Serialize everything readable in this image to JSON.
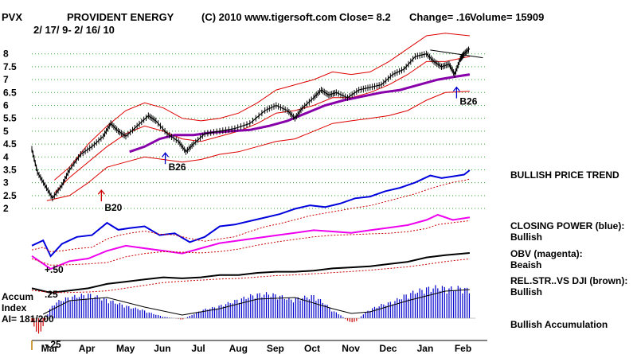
{
  "chart_data": {
    "type": "candlestick",
    "ticker": "PVX",
    "title": "PROVIDENT ENERGY",
    "date_range": "2/ 17/ 9- 2/ 16/ 10",
    "copyright": "(C) 2010 www.tigersoft.com",
    "close_label": "Close=  8.2",
    "change_label": "Change= .16",
    "volume_label": "Volume= 15909",
    "ylim": [
      1.6,
      8.3
    ],
    "y_ticks": [
      {
        "value": 8,
        "label": "8"
      },
      {
        "value": 7.5,
        "label": "7.5"
      },
      {
        "value": 7,
        "label": "7"
      },
      {
        "value": 6.5,
        "label": "6.5"
      },
      {
        "value": 6,
        "label": "6"
      },
      {
        "value": 5.5,
        "label": "5.5"
      },
      {
        "value": 5,
        "label": "5"
      },
      {
        "value": 4.5,
        "label": "4.5"
      },
      {
        "value": 4,
        "label": "4"
      },
      {
        "value": 3.5,
        "label": "3.5"
      },
      {
        "value": 3,
        "label": "3"
      },
      {
        "value": 2.5,
        "label": "2.5"
      },
      {
        "value": 2,
        "label": "2"
      }
    ],
    "x_ticks": [
      {
        "t": 0.5,
        "label": "Mar"
      },
      {
        "t": 1.5,
        "label": "Apr"
      },
      {
        "t": 2.5,
        "label": "May"
      },
      {
        "t": 3.5,
        "label": "Jun"
      },
      {
        "t": 4.5,
        "label": "Jul"
      },
      {
        "t": 5.5,
        "label": "Aug"
      },
      {
        "t": 6.5,
        "label": "Sep"
      },
      {
        "t": 7.5,
        "label": "Oct"
      },
      {
        "t": 8.5,
        "label": "Nov"
      },
      {
        "t": 9.5,
        "label": "Dec"
      },
      {
        "t": 10.5,
        "label": "Jan"
      },
      {
        "t": 11.5,
        "label": "Feb"
      }
    ],
    "price_series": {
      "name": "PVX close",
      "points": [
        [
          0,
          4.3
        ],
        [
          0.15,
          3.4
        ],
        [
          0.35,
          2.9
        ],
        [
          0.55,
          2.4
        ],
        [
          0.8,
          2.9
        ],
        [
          1.0,
          3.5
        ],
        [
          1.3,
          4.1
        ],
        [
          1.6,
          4.4
        ],
        [
          1.9,
          4.8
        ],
        [
          2.1,
          5.3
        ],
        [
          2.3,
          5.0
        ],
        [
          2.5,
          4.8
        ],
        [
          2.8,
          5.2
        ],
        [
          3.1,
          5.6
        ],
        [
          3.3,
          5.4
        ],
        [
          3.6,
          4.9
        ],
        [
          3.9,
          4.6
        ],
        [
          4.1,
          4.2
        ],
        [
          4.3,
          4.5
        ],
        [
          4.6,
          4.9
        ],
        [
          5.0,
          5.0
        ],
        [
          5.4,
          5.1
        ],
        [
          5.8,
          5.3
        ],
        [
          6.2,
          5.8
        ],
        [
          6.5,
          6.0
        ],
        [
          6.8,
          5.8
        ],
        [
          7.0,
          5.5
        ],
        [
          7.2,
          5.9
        ],
        [
          7.5,
          6.3
        ],
        [
          7.7,
          6.6
        ],
        [
          7.9,
          6.4
        ],
        [
          8.1,
          6.5
        ],
        [
          8.4,
          6.3
        ],
        [
          8.7,
          6.6
        ],
        [
          9.0,
          6.7
        ],
        [
          9.3,
          6.8
        ],
        [
          9.6,
          7.2
        ],
        [
          9.9,
          7.4
        ],
        [
          10.2,
          7.9
        ],
        [
          10.5,
          8.0
        ],
        [
          10.7,
          7.7
        ],
        [
          10.9,
          7.5
        ],
        [
          11.1,
          7.6
        ],
        [
          11.25,
          7.2
        ],
        [
          11.4,
          7.8
        ],
        [
          11.5,
          8.0
        ],
        [
          11.65,
          8.2
        ]
      ]
    },
    "moving_average": {
      "name": "65-day MA (purple)",
      "points": [
        [
          2.6,
          4.2
        ],
        [
          3.0,
          4.4
        ],
        [
          3.4,
          4.7
        ],
        [
          3.8,
          4.85
        ],
        [
          4.3,
          4.85
        ],
        [
          4.8,
          4.95
        ],
        [
          5.3,
          5.0
        ],
        [
          5.8,
          5.05
        ],
        [
          6.3,
          5.2
        ],
        [
          6.8,
          5.4
        ],
        [
          7.3,
          5.7
        ],
        [
          7.8,
          6.0
        ],
        [
          8.3,
          6.2
        ],
        [
          8.8,
          6.35
        ],
        [
          9.3,
          6.5
        ],
        [
          9.8,
          6.6
        ],
        [
          10.3,
          6.8
        ],
        [
          10.8,
          7.0
        ],
        [
          11.2,
          7.1
        ],
        [
          11.65,
          7.2
        ]
      ]
    },
    "upper_band": {
      "name": "upper band",
      "points": [
        [
          0.6,
          3.1
        ],
        [
          1.0,
          3.6
        ],
        [
          1.5,
          4.5
        ],
        [
          2.0,
          5.2
        ],
        [
          2.5,
          5.8
        ],
        [
          3.0,
          6.1
        ],
        [
          3.5,
          5.9
        ],
        [
          4.0,
          5.5
        ],
        [
          4.5,
          5.4
        ],
        [
          5.0,
          5.5
        ],
        [
          5.5,
          5.7
        ],
        [
          6.0,
          6.1
        ],
        [
          6.5,
          6.6
        ],
        [
          7.0,
          6.8
        ],
        [
          7.5,
          7.0
        ],
        [
          8.0,
          7.3
        ],
        [
          8.5,
          7.2
        ],
        [
          9.0,
          7.3
        ],
        [
          9.5,
          7.7
        ],
        [
          10.0,
          8.2
        ],
        [
          10.5,
          8.7
        ],
        [
          11.0,
          8.8
        ],
        [
          11.65,
          8.7
        ]
      ]
    },
    "lower_band": {
      "name": "lower band",
      "points": [
        [
          0.4,
          2.3
        ],
        [
          1.0,
          2.5
        ],
        [
          1.5,
          3.0
        ],
        [
          2.0,
          3.6
        ],
        [
          2.5,
          3.8
        ],
        [
          3.0,
          4.0
        ],
        [
          3.5,
          3.9
        ],
        [
          4.0,
          3.8
        ],
        [
          4.5,
          3.9
        ],
        [
          5.0,
          4.1
        ],
        [
          5.5,
          4.2
        ],
        [
          6.0,
          4.4
        ],
        [
          6.5,
          4.6
        ],
        [
          7.0,
          4.7
        ],
        [
          7.5,
          5.0
        ],
        [
          8.0,
          5.3
        ],
        [
          8.5,
          5.4
        ],
        [
          9.0,
          5.5
        ],
        [
          9.5,
          5.6
        ],
        [
          10.0,
          5.8
        ],
        [
          10.5,
          6.2
        ],
        [
          11.0,
          6.5
        ],
        [
          11.65,
          6.55
        ]
      ]
    },
    "mid_band": {
      "name": "21-day MA (red)",
      "points": [
        [
          0.6,
          2.6
        ],
        [
          1.0,
          3.2
        ],
        [
          1.5,
          3.8
        ],
        [
          2.0,
          4.4
        ],
        [
          2.5,
          4.9
        ],
        [
          3.0,
          5.2
        ],
        [
          3.5,
          5.0
        ],
        [
          4.0,
          4.7
        ],
        [
          4.5,
          4.6
        ],
        [
          5.0,
          4.8
        ],
        [
          5.5,
          5.0
        ],
        [
          6.0,
          5.3
        ],
        [
          6.5,
          5.7
        ],
        [
          7.0,
          5.8
        ],
        [
          7.5,
          6.0
        ],
        [
          8.0,
          6.3
        ],
        [
          8.5,
          6.3
        ],
        [
          9.0,
          6.5
        ],
        [
          9.5,
          6.8
        ],
        [
          10.0,
          7.2
        ],
        [
          10.5,
          7.7
        ],
        [
          11.0,
          7.7
        ],
        [
          11.65,
          7.9
        ]
      ]
    },
    "trendline": {
      "points": [
        [
          10.6,
          8.15
        ],
        [
          12.0,
          7.85
        ]
      ]
    },
    "signals": [
      {
        "label": "B20",
        "t": 1.85,
        "price": 2.15,
        "color": "#cc0000",
        "large": true
      },
      {
        "label": "B26",
        "t": 3.55,
        "price": 3.6,
        "color": "#0000cc",
        "large": false
      },
      {
        "label": "B26",
        "t": 11.3,
        "price": 6.15,
        "color": "#0000cc",
        "large": false
      }
    ],
    "indicators": [
      {
        "name": "CLOSING POWER (blue)",
        "status": "Bullish",
        "color": "#0000dd",
        "points": [
          [
            0,
            18
          ],
          [
            0.3,
            24
          ],
          [
            0.5,
            6
          ],
          [
            0.8,
            20
          ],
          [
            1.2,
            28
          ],
          [
            1.6,
            30
          ],
          [
            2.0,
            44
          ],
          [
            2.3,
            36
          ],
          [
            2.6,
            38
          ],
          [
            3.0,
            40
          ],
          [
            3.4,
            30
          ],
          [
            3.8,
            32
          ],
          [
            4.2,
            22
          ],
          [
            4.6,
            28
          ],
          [
            5.0,
            40
          ],
          [
            5.4,
            42
          ],
          [
            5.8,
            46
          ],
          [
            6.2,
            50
          ],
          [
            6.6,
            54
          ],
          [
            7.0,
            60
          ],
          [
            7.4,
            64
          ],
          [
            7.8,
            62
          ],
          [
            8.2,
            66
          ],
          [
            8.6,
            72
          ],
          [
            9.0,
            74
          ],
          [
            9.4,
            80
          ],
          [
            9.8,
            84
          ],
          [
            10.2,
            90
          ],
          [
            10.6,
            98
          ],
          [
            10.9,
            95
          ],
          [
            11.2,
            97
          ],
          [
            11.5,
            99
          ],
          [
            11.65,
            104
          ]
        ]
      },
      {
        "name": "OBV (magenta)",
        "status": "Beaish",
        "color": "#ee00ee",
        "points": [
          [
            0,
            30
          ],
          [
            0.5,
            20
          ],
          [
            1.0,
            26
          ],
          [
            1.5,
            28
          ],
          [
            2.0,
            34
          ],
          [
            2.5,
            38
          ],
          [
            3.0,
            36
          ],
          [
            3.5,
            34
          ],
          [
            4.0,
            32
          ],
          [
            4.5,
            36
          ],
          [
            5.0,
            40
          ],
          [
            5.5,
            42
          ],
          [
            6.0,
            44
          ],
          [
            6.5,
            46
          ],
          [
            7.0,
            48
          ],
          [
            7.5,
            50
          ],
          [
            8.0,
            49
          ],
          [
            8.5,
            48
          ],
          [
            9.0,
            50
          ],
          [
            9.5,
            52
          ],
          [
            10.0,
            54
          ],
          [
            10.5,
            58
          ],
          [
            10.8,
            62
          ],
          [
            11.2,
            58
          ],
          [
            11.65,
            60
          ]
        ]
      },
      {
        "name": "REL.STR..VS DJI (brown)",
        "status": "Bullish",
        "color": "#000000",
        "points": [
          [
            0,
            12
          ],
          [
            0.5,
            8
          ],
          [
            1.0,
            10
          ],
          [
            1.5,
            12
          ],
          [
            2.0,
            16
          ],
          [
            2.5,
            18
          ],
          [
            3.0,
            20
          ],
          [
            3.5,
            22
          ],
          [
            4.0,
            21
          ],
          [
            4.5,
            22
          ],
          [
            5.0,
            24
          ],
          [
            5.5,
            24
          ],
          [
            6.0,
            26
          ],
          [
            6.5,
            27
          ],
          [
            7.0,
            27
          ],
          [
            7.5,
            28
          ],
          [
            8.0,
            30
          ],
          [
            8.5,
            31
          ],
          [
            9.0,
            32
          ],
          [
            9.5,
            34
          ],
          [
            10.0,
            36
          ],
          [
            10.5,
            40
          ],
          [
            11.0,
            42
          ],
          [
            11.65,
            44
          ]
        ]
      }
    ],
    "indicator_labels": {
      "obv_marker": "+.50",
      "rs_marker": ".25"
    },
    "accumulation": {
      "label_line1": "Accum",
      "label_line2": "Index",
      "reading": "AI= 181/200",
      "status": "Bullish Accumulation",
      "bottom_marker": "-.25",
      "points": [
        [
          0,
          -0.05
        ],
        [
          0.1,
          -0.15
        ],
        [
          0.2,
          -0.25
        ],
        [
          0.3,
          -0.1
        ],
        [
          0.45,
          0.1
        ],
        [
          0.6,
          0.2
        ],
        [
          0.8,
          0.25
        ],
        [
          1.0,
          0.28
        ],
        [
          1.2,
          0.3
        ],
        [
          1.5,
          0.32
        ],
        [
          1.8,
          0.28
        ],
        [
          2.0,
          0.25
        ],
        [
          2.3,
          0.2
        ],
        [
          2.6,
          0.15
        ],
        [
          2.9,
          0.12
        ],
        [
          3.1,
          0.08
        ],
        [
          3.3,
          0.05
        ],
        [
          3.5,
          0.02
        ],
        [
          3.8,
          0.0
        ],
        [
          4.0,
          -0.02
        ],
        [
          4.2,
          0.03
        ],
        [
          4.4,
          0.08
        ],
        [
          4.6,
          0.12
        ],
        [
          4.9,
          0.15
        ],
        [
          5.2,
          0.2
        ],
        [
          5.5,
          0.25
        ],
        [
          5.8,
          0.3
        ],
        [
          6.0,
          0.32
        ],
        [
          6.3,
          0.33
        ],
        [
          6.6,
          0.3
        ],
        [
          6.9,
          0.25
        ],
        [
          7.2,
          0.28
        ],
        [
          7.5,
          0.3
        ],
        [
          7.8,
          0.2
        ],
        [
          8.0,
          0.1
        ],
        [
          8.2,
          0.05
        ],
        [
          8.4,
          -0.04
        ],
        [
          8.6,
          -0.06
        ],
        [
          8.8,
          0.05
        ],
        [
          9.0,
          0.12
        ],
        [
          9.3,
          0.18
        ],
        [
          9.6,
          0.22
        ],
        [
          9.9,
          0.3
        ],
        [
          10.2,
          0.36
        ],
        [
          10.5,
          0.4
        ],
        [
          10.8,
          0.42
        ],
        [
          11.1,
          0.4
        ],
        [
          11.4,
          0.41
        ],
        [
          11.65,
          0.38
        ]
      ],
      "ma_points": [
        [
          0.3,
          0.05
        ],
        [
          1.0,
          0.22
        ],
        [
          2.0,
          0.26
        ],
        [
          3.0,
          0.14
        ],
        [
          4.0,
          0.04
        ],
        [
          5.0,
          0.12
        ],
        [
          6.0,
          0.24
        ],
        [
          7.0,
          0.26
        ],
        [
          8.0,
          0.12
        ],
        [
          8.5,
          0.06
        ],
        [
          9.0,
          0.08
        ],
        [
          10.0,
          0.22
        ],
        [
          11.0,
          0.34
        ],
        [
          11.65,
          0.36
        ]
      ]
    },
    "side_labels": {
      "trend": "BULLISH PRICE TREND",
      "cp_title": "CLOSING POWER (blue):",
      "cp_status": "Bullish",
      "obv_title": "OBV (magenta):",
      "obv_status": "Beaish",
      "rs_title": "REL.STR..VS DJI (brown):",
      "rs_status": "Bullish",
      "ai_status": "Bullish Accumulation"
    }
  }
}
